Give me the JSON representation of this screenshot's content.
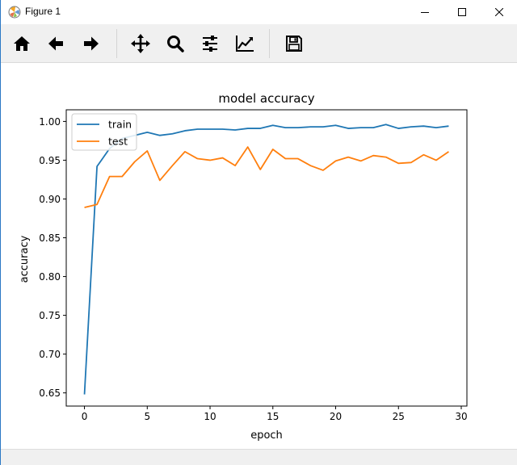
{
  "window": {
    "title": "Figure 1",
    "controls": {
      "minimize": "minimize",
      "maximize": "maximize",
      "close": "close"
    }
  },
  "toolbar": {
    "buttons": [
      {
        "name": "home-button",
        "icon": "home-icon",
        "tooltip": "Home"
      },
      {
        "name": "back-button",
        "icon": "arrow-left-icon",
        "tooltip": "Back"
      },
      {
        "name": "forward-button",
        "icon": "arrow-right-icon",
        "tooltip": "Forward"
      },
      {
        "name": "pan-button",
        "icon": "move-icon",
        "tooltip": "Pan"
      },
      {
        "name": "zoom-button",
        "icon": "magnifier-icon",
        "tooltip": "Zoom"
      },
      {
        "name": "subplots-button",
        "icon": "sliders-icon",
        "tooltip": "Subplots"
      },
      {
        "name": "edit-axis-button",
        "icon": "line-chart-icon",
        "tooltip": "Customize"
      },
      {
        "name": "save-button",
        "icon": "floppy-disk-icon",
        "tooltip": "Save"
      }
    ]
  },
  "status": {
    "text": ""
  },
  "chart_data": {
    "type": "line",
    "title": "model accuracy",
    "xlabel": "epoch",
    "ylabel": "accuracy",
    "xlim": [
      -1.45,
      30.45
    ],
    "ylim": [
      0.633,
      1.015
    ],
    "xticks": [
      0,
      5,
      10,
      15,
      20,
      25,
      30
    ],
    "xtick_labels": [
      "0",
      "5",
      "10",
      "15",
      "20",
      "25",
      "30"
    ],
    "yticks": [
      0.65,
      0.7,
      0.75,
      0.8,
      0.85,
      0.9,
      0.95,
      1.0
    ],
    "ytick_labels": [
      "0.65",
      "0.70",
      "0.75",
      "0.80",
      "0.85",
      "0.90",
      "0.95",
      "1.00"
    ],
    "grid": false,
    "legend": "upper left",
    "x": [
      0,
      1,
      2,
      3,
      4,
      5,
      6,
      7,
      8,
      9,
      10,
      11,
      12,
      13,
      14,
      15,
      16,
      17,
      18,
      19,
      20,
      21,
      22,
      23,
      24,
      25,
      26,
      27,
      28,
      29
    ],
    "series": [
      {
        "name": "train",
        "color": "#1f77b4",
        "values": [
          0.648,
          0.942,
          0.965,
          0.978,
          0.982,
          0.986,
          0.982,
          0.984,
          0.988,
          0.99,
          0.99,
          0.99,
          0.989,
          0.991,
          0.991,
          0.995,
          0.992,
          0.992,
          0.993,
          0.993,
          0.995,
          0.991,
          0.992,
          0.992,
          0.996,
          0.991,
          0.993,
          0.994,
          0.992,
          0.994
        ]
      },
      {
        "name": "test",
        "color": "#ff7f0e",
        "values": [
          0.889,
          0.893,
          0.929,
          0.929,
          0.948,
          0.962,
          0.924,
          0.943,
          0.961,
          0.952,
          0.95,
          0.953,
          0.943,
          0.967,
          0.938,
          0.964,
          0.952,
          0.952,
          0.943,
          0.937,
          0.949,
          0.954,
          0.949,
          0.956,
          0.954,
          0.946,
          0.947,
          0.957,
          0.95,
          0.961
        ]
      }
    ]
  }
}
